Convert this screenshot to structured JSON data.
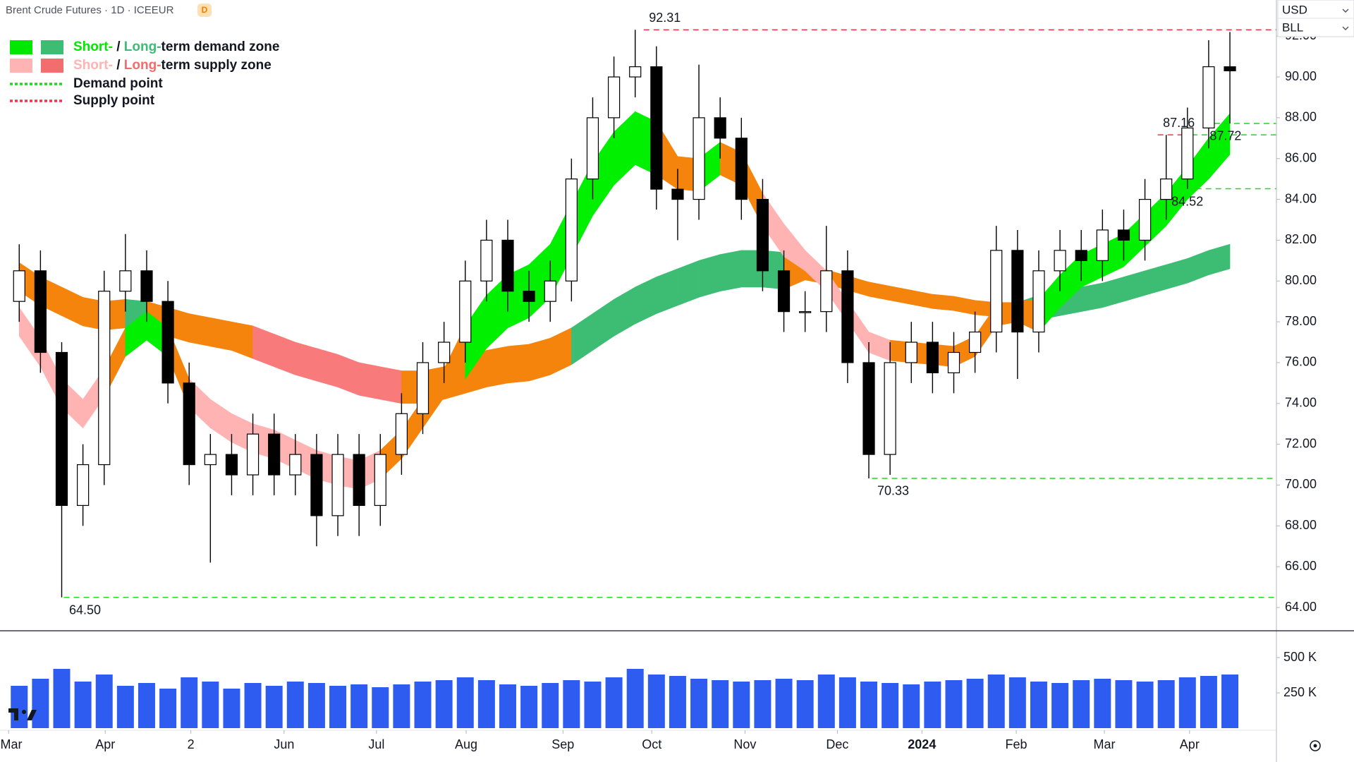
{
  "header": {
    "title": "Brent Crude Futures · 1D · ICEEUR",
    "badge": "D"
  },
  "currency": "USD",
  "unit": "BLL",
  "legend": [
    {
      "short": "Short-",
      "sep": " / ",
      "long": "Long-",
      "text": "term demand zone",
      "short_color": "#00e800",
      "long_color": "#3dbd74"
    },
    {
      "short": "Short-",
      "sep": " / ",
      "long": "Long-",
      "text": "term supply zone",
      "short_color": "#ffb3b3",
      "long_color": "#f26d6d"
    },
    {
      "text": "Demand point",
      "line_color": "#22d622"
    },
    {
      "text": "Supply point",
      "line_color": "#f23645"
    }
  ],
  "chart_data": {
    "type": "candlestick",
    "x": [
      0.5,
      1.5,
      2.5,
      3.5,
      4.5,
      5.5,
      6.5,
      7.5,
      8.5,
      9.5,
      10.5,
      11.5,
      12.5,
      13.5,
      14.5,
      15.5,
      16.5,
      17.5,
      18.5,
      19.5,
      20.5,
      21.5,
      22.5,
      23.5,
      24.5,
      25.5,
      26.5,
      27.5,
      28.5,
      29.5,
      30.5,
      31.5,
      32.5,
      33.5,
      34.5,
      35.5,
      36.5,
      37.5,
      38.5,
      39.5,
      40.5,
      41.5,
      42.5,
      43.5,
      44.5,
      45.5,
      46.5,
      47.5,
      48.5,
      49.5,
      50.5,
      51.5,
      52.5,
      53.5,
      54.5,
      55.5,
      56.5,
      57.5
    ],
    "open": [
      79,
      80.5,
      76.5,
      69,
      71,
      79.5,
      80.5,
      79,
      75,
      71,
      71.5,
      70.5,
      72.5,
      70.5,
      71.5,
      68.5,
      71.5,
      69,
      71.5,
      73.5,
      76,
      77,
      80,
      82,
      79.5,
      79,
      80,
      85,
      88,
      90,
      90.5,
      84.5,
      84,
      88,
      87,
      84,
      80.5,
      78.5,
      78.5,
      80.5,
      76,
      71.5,
      76,
      77,
      75.5,
      76.5,
      77.5,
      81.5,
      77.5,
      80.5,
      81.5,
      81,
      82.5,
      82,
      84,
      85,
      87.5,
      90.5
    ],
    "high": [
      81.8,
      81.5,
      77,
      72,
      80.5,
      82.3,
      81.5,
      80,
      76,
      72.5,
      72.5,
      73.5,
      73.5,
      72.5,
      72.5,
      72.5,
      72.5,
      72.5,
      74.5,
      77,
      78,
      81,
      83,
      83,
      80.5,
      81,
      86,
      89,
      91,
      92.31,
      91.5,
      85.5,
      90.6,
      89,
      88,
      85,
      81.5,
      79.5,
      82.7,
      81.5,
      77,
      77,
      78,
      78,
      77.5,
      78.5,
      82.7,
      82.5,
      81.5,
      82.5,
      82.5,
      83.5,
      83.5,
      85,
      87.16,
      88.5,
      91.8,
      92.2
    ],
    "low": [
      78,
      75.5,
      64.5,
      68,
      70,
      78.5,
      78,
      74,
      70,
      66.2,
      69.5,
      69.5,
      69.5,
      69.5,
      67,
      67.5,
      67.5,
      68,
      70.5,
      72.5,
      75,
      76,
      79,
      78.5,
      78,
      78,
      79,
      84,
      87,
      89,
      83.5,
      82,
      83,
      86,
      83,
      79.5,
      77.5,
      77.5,
      77.5,
      75,
      70.33,
      70.5,
      75,
      74.5,
      74.5,
      75.5,
      76.5,
      75.2,
      76.5,
      79.5,
      80,
      80,
      81,
      81,
      83,
      84.52,
      86.5,
      87.72
    ],
    "close": [
      80.5,
      76.5,
      69,
      71,
      79.5,
      80.5,
      79,
      75,
      71,
      71.5,
      70.5,
      72.5,
      70.5,
      71.5,
      68.5,
      71.5,
      69,
      71.5,
      73.5,
      76,
      77,
      80,
      82,
      79.5,
      79,
      80,
      85,
      88,
      90,
      90.5,
      84.5,
      84,
      88,
      87,
      84,
      80.5,
      78.5,
      78.5,
      80.5,
      76,
      71.5,
      76,
      77,
      75.5,
      76.5,
      77.5,
      81.5,
      77.5,
      80.5,
      81.5,
      81,
      82.5,
      82,
      84,
      85,
      87.5,
      90.5,
      90.3
    ],
    "candle_colors": {
      "up": "#ffffff",
      "down": "#000000"
    },
    "xlim": [
      -0.405,
      59.69
    ],
    "xticks": [
      {
        "value": 0,
        "label": "Mar"
      },
      {
        "value": 4.55,
        "label": "Apr"
      },
      {
        "value": 8.58,
        "label": "2"
      },
      {
        "value": 12.97,
        "label": "Jun"
      },
      {
        "value": 17.32,
        "label": "Jul"
      },
      {
        "value": 21.54,
        "label": "Aug"
      },
      {
        "value": 26.1,
        "label": "Sep"
      },
      {
        "value": 30.28,
        "label": "Oct"
      },
      {
        "value": 34.67,
        "label": "Nov"
      },
      {
        "value": 39.02,
        "label": "Dec"
      },
      {
        "value": 43.0,
        "label": "2024"
      },
      {
        "value": 47.44,
        "label": "Feb"
      },
      {
        "value": 51.59,
        "label": "Mar"
      },
      {
        "value": 55.6,
        "label": "Apr"
      }
    ],
    "ylim": [
      62.86,
      93.77
    ],
    "yticks": [
      {
        "value": 64,
        "label": "64.00"
      },
      {
        "value": 66,
        "label": "66.00"
      },
      {
        "value": 68,
        "label": "68.00"
      },
      {
        "value": 70,
        "label": "70.00"
      },
      {
        "value": 72,
        "label": "72.00"
      },
      {
        "value": 74,
        "label": "74.00"
      },
      {
        "value": 76,
        "label": "76.00"
      },
      {
        "value": 78,
        "label": "78.00"
      },
      {
        "value": 80,
        "label": "80.00"
      },
      {
        "value": 82,
        "label": "82.00"
      },
      {
        "value": 84,
        "label": "84.00"
      },
      {
        "value": 86,
        "label": "86.00"
      },
      {
        "value": 88,
        "label": "88.00"
      },
      {
        "value": 90,
        "label": "90.00"
      },
      {
        "value": 92,
        "label": "92.00"
      }
    ],
    "grid": false,
    "levels": [
      {
        "value": 92.31,
        "label": "92.31",
        "x": 29.9,
        "kind": "supply"
      },
      {
        "value": 87.72,
        "label": "87.72",
        "x": 56.3,
        "kind": "demand"
      },
      {
        "value": 87.16,
        "label": "87.16",
        "x": 54.1,
        "kind": "supply",
        "becomes_demand_at": 55.7
      },
      {
        "value": 84.52,
        "label": "84.52",
        "x": 54.5,
        "kind": "demand"
      },
      {
        "value": 70.33,
        "label": "70.33",
        "x": 40.65,
        "kind": "demand"
      },
      {
        "value": 64.5,
        "label": "64.50",
        "x": 2.6,
        "kind": "demand"
      }
    ],
    "level_colors": {
      "supply": "#f23645",
      "demand": "#22d622"
    },
    "short_zone": {
      "upper": [
        78.7,
        77.2,
        75.2,
        74.2,
        75.7,
        77.7,
        78.5,
        77.7,
        75.2,
        74.2,
        73.5,
        73.0,
        72.7,
        72.2,
        71.7,
        71.4,
        71.2,
        71.7,
        72.7,
        74.2,
        75.7,
        77.8,
        79.3,
        80.3,
        80.8,
        81.8,
        83.8,
        85.8,
        87.3,
        88.3,
        87.8,
        86.1,
        86.0,
        86.8,
        86.3,
        84.3,
        82.8,
        81.5,
        80.5,
        79.0,
        77.5,
        77.1,
        77.0,
        76.9,
        76.8,
        77.3,
        78.8,
        79.0,
        79.1,
        80.3,
        81.3,
        81.8,
        82.3,
        83.3,
        84.3,
        85.6,
        87.0,
        88.2
      ],
      "lower": [
        77.3,
        75.8,
        73.8,
        72.8,
        74.3,
        76.3,
        77.1,
        76.3,
        73.8,
        72.8,
        72.1,
        71.6,
        71.3,
        70.8,
        70.3,
        70.0,
        69.8,
        70.3,
        71.3,
        72.8,
        74.3,
        75.2,
        76.7,
        77.7,
        78.2,
        79.2,
        81.2,
        83.2,
        84.7,
        85.7,
        85.2,
        84.5,
        84.4,
        85.2,
        84.7,
        82.7,
        81.2,
        80.5,
        79.5,
        78.0,
        76.5,
        76.1,
        76.0,
        75.9,
        75.8,
        76.3,
        77.8,
        78.0,
        77.5,
        78.7,
        79.7,
        80.2,
        80.7,
        81.7,
        82.7,
        84.0,
        85.0,
        86.2
      ],
      "colors": [
        "#ffb3b3",
        "#ffb3b3",
        "#ffb3b3",
        "#ffb3b3",
        "#f5840c",
        "#00f000",
        "#00f000",
        "#f5840c",
        "#ffb3b3",
        "#ffb3b3",
        "#ffb3b3",
        "#ffb3b3",
        "#ffb3b3",
        "#ffb3b3",
        "#ffb3b3",
        "#ffb3b3",
        "#ffb3b3",
        "#f5840c",
        "#f5840c",
        "#f5840c",
        "#f5840c",
        "#00f000",
        "#00f000",
        "#00f000",
        "#00f000",
        "#00f000",
        "#00f000",
        "#00f000",
        "#00f000",
        "#00f000",
        "#f5840c",
        "#f5840c",
        "#00f000",
        "#f5840c",
        "#f5840c",
        "#ffb3b3",
        "#ffb3b3",
        "#ffb3b3",
        "#ffb3b3",
        "#ffb3b3",
        "#ffb3b3",
        "#f5840c",
        "#f5840c",
        "#f5840c",
        "#f5840c",
        "#f5840c",
        "#f5840c",
        "#f5840c",
        "#00f000",
        "#00f000",
        "#00f000",
        "#00f000",
        "#00f000",
        "#00f000",
        "#00f000",
        "#00f000",
        "#00f000",
        "#00f000"
      ]
    },
    "long_zone": {
      "upper": [
        80.9,
        80.2,
        79.7,
        79.2,
        79.0,
        79.1,
        79.0,
        78.7,
        78.4,
        78.2,
        78.0,
        77.8,
        77.4,
        77.0,
        76.7,
        76.4,
        76.0,
        75.8,
        75.6,
        75.6,
        75.8,
        76.3,
        76.6,
        76.8,
        76.9,
        77.2,
        77.7,
        78.4,
        79.1,
        79.7,
        80.2,
        80.6,
        81.0,
        81.3,
        81.5,
        81.5,
        81.4,
        80.75,
        80.55,
        80.25,
        79.95,
        79.75,
        79.55,
        79.35,
        79.25,
        79.05,
        78.95,
        78.95,
        79.3,
        79.5,
        79.7,
        79.9,
        80.2,
        80.5,
        80.8,
        81.1,
        81.5,
        81.8
      ],
      "lower": [
        79.5,
        78.8,
        78.3,
        77.8,
        77.6,
        77.7,
        77.6,
        77.3,
        77.0,
        76.8,
        76.6,
        76.2,
        75.8,
        75.4,
        75.1,
        74.8,
        74.4,
        74.2,
        74.0,
        74.0,
        74.2,
        74.5,
        74.8,
        75.0,
        75.1,
        75.4,
        75.9,
        76.6,
        77.3,
        77.9,
        78.4,
        78.8,
        79.2,
        79.5,
        79.7,
        79.7,
        79.6,
        80.05,
        79.85,
        79.55,
        79.25,
        79.05,
        78.85,
        78.65,
        78.55,
        78.35,
        78.25,
        78.25,
        78.1,
        78.3,
        78.5,
        78.7,
        79.0,
        79.3,
        79.6,
        79.9,
        80.3,
        80.6
      ],
      "colors": [
        "#f5840c",
        "#f5840c",
        "#f5840c",
        "#f5840c",
        "#f5840c",
        "#3dbd74",
        "#f5840c",
        "#f5840c",
        "#f5840c",
        "#f5840c",
        "#f5840c",
        "#f87a7a",
        "#f87a7a",
        "#f87a7a",
        "#f87a7a",
        "#f87a7a",
        "#f87a7a",
        "#f87a7a",
        "#f5840c",
        "#f5840c",
        "#f5840c",
        "#f5840c",
        "#f5840c",
        "#f5840c",
        "#f5840c",
        "#f5840c",
        "#3dbd74",
        "#3dbd74",
        "#3dbd74",
        "#3dbd74",
        "#3dbd74",
        "#3dbd74",
        "#3dbd74",
        "#3dbd74",
        "#3dbd74",
        "#3dbd74",
        "#f5840c",
        "#f5840c",
        "#f5840c",
        "#f5840c",
        "#f5840c",
        "#f5840c",
        "#f5840c",
        "#f5840c",
        "#f5840c",
        "#f5840c",
        "#f5840c",
        "#3dbd74",
        "#3dbd74",
        "#3dbd74",
        "#3dbd74",
        "#3dbd74",
        "#3dbd74",
        "#3dbd74",
        "#3dbd74",
        "#3dbd74",
        "#3dbd74",
        "#3dbd74"
      ]
    },
    "volume": {
      "type": "bar",
      "color": "#2f5cf0",
      "values": [
        300000,
        350000,
        420000,
        330000,
        380000,
        300000,
        320000,
        280000,
        360000,
        330000,
        280000,
        320000,
        300000,
        330000,
        320000,
        300000,
        310000,
        290000,
        310000,
        330000,
        340000,
        360000,
        340000,
        310000,
        300000,
        320000,
        340000,
        330000,
        360000,
        420000,
        380000,
        370000,
        350000,
        340000,
        330000,
        340000,
        350000,
        340000,
        380000,
        360000,
        330000,
        320000,
        310000,
        330000,
        340000,
        350000,
        380000,
        360000,
        330000,
        320000,
        340000,
        350000,
        340000,
        330000,
        340000,
        360000,
        370000,
        380000
      ],
      "ylim": [
        0,
        660000
      ],
      "yticks": [
        {
          "value": 250000,
          "label": "250 K"
        },
        {
          "value": 500000,
          "label": "500 K"
        }
      ]
    }
  }
}
